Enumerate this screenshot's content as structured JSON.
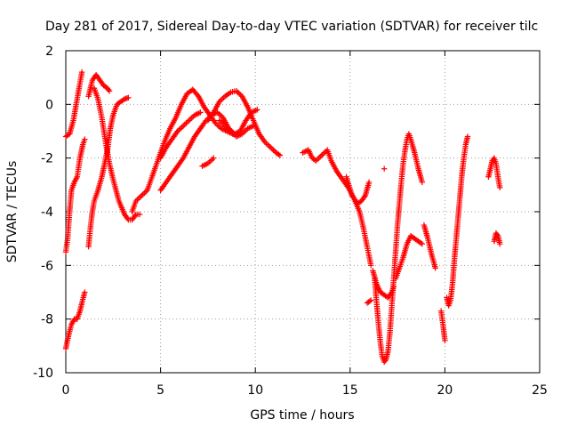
{
  "chart_data": {
    "type": "scatter",
    "title": "Day 281 of 2017, Sidereal Day-to-day VTEC variation (SDTVAR) for receiver tilc",
    "xlabel": "GPS time / hours",
    "ylabel": "SDTVAR / TECUs",
    "xlim": [
      0,
      25
    ],
    "ylim": [
      -10,
      2
    ],
    "xticks": [
      0,
      5,
      10,
      15,
      20,
      25
    ],
    "yticks": [
      -10,
      -8,
      -6,
      -4,
      -2,
      0,
      2
    ],
    "grid": true,
    "marker": "plus",
    "color": "#ff0000",
    "series": [
      {
        "name": "",
        "segments": [
          [
            [
              0.0,
              -1.2
            ],
            [
              0.2,
              -1.1
            ],
            [
              0.4,
              -0.6
            ],
            [
              0.55,
              0.0
            ],
            [
              0.7,
              0.6
            ],
            [
              0.8,
              1.0
            ],
            [
              0.85,
              1.2
            ]
          ],
          [
            [
              0.0,
              -5.5
            ],
            [
              0.1,
              -5.0
            ],
            [
              0.2,
              -4.0
            ],
            [
              0.3,
              -3.2
            ],
            [
              0.45,
              -2.9
            ],
            [
              0.6,
              -2.7
            ],
            [
              0.75,
              -2.0
            ],
            [
              0.9,
              -1.5
            ],
            [
              1.0,
              -1.3
            ]
          ],
          [
            [
              0.0,
              -9.1
            ],
            [
              0.15,
              -8.6
            ],
            [
              0.3,
              -8.2
            ],
            [
              0.45,
              -8.0
            ],
            [
              0.6,
              -8.0
            ],
            [
              0.75,
              -7.7
            ],
            [
              0.85,
              -7.4
            ],
            [
              1.0,
              -7.0
            ]
          ],
          [
            [
              1.2,
              -5.3
            ],
            [
              1.3,
              -4.6
            ],
            [
              1.4,
              -4.0
            ],
            [
              1.5,
              -3.6
            ],
            [
              1.7,
              -3.2
            ],
            [
              1.9,
              -2.7
            ],
            [
              2.05,
              -2.2
            ],
            [
              2.2,
              -1.7
            ],
            [
              2.35,
              -0.9
            ],
            [
              2.5,
              -0.4
            ],
            [
              2.7,
              -0.0
            ],
            [
              2.9,
              0.1
            ],
            [
              3.1,
              0.2
            ],
            [
              3.3,
              0.25
            ]
          ],
          [
            [
              1.2,
              0.3
            ],
            [
              1.4,
              0.9
            ],
            [
              1.6,
              1.1
            ],
            [
              1.8,
              0.9
            ],
            [
              2.0,
              0.7
            ],
            [
              2.2,
              0.6
            ],
            [
              2.3,
              0.5
            ]
          ],
          [
            [
              1.5,
              0.6
            ],
            [
              1.7,
              0.2
            ],
            [
              1.9,
              -0.5
            ],
            [
              2.1,
              -1.4
            ],
            [
              2.3,
              -2.2
            ],
            [
              2.5,
              -2.8
            ],
            [
              2.8,
              -3.6
            ],
            [
              3.1,
              -4.1
            ],
            [
              3.3,
              -4.3
            ],
            [
              3.5,
              -4.3
            ],
            [
              3.7,
              -4.1
            ],
            [
              3.9,
              -4.1
            ]
          ],
          [
            [
              3.5,
              -4.0
            ],
            [
              3.7,
              -3.6
            ],
            [
              4.0,
              -3.4
            ],
            [
              4.3,
              -3.2
            ],
            [
              4.6,
              -2.6
            ],
            [
              4.9,
              -2.0
            ],
            [
              5.2,
              -1.4
            ],
            [
              5.5,
              -0.9
            ],
            [
              5.8,
              -0.5
            ],
            [
              6.1,
              -0.0
            ],
            [
              6.4,
              0.4
            ],
            [
              6.7,
              0.55
            ]
          ],
          [
            [
              5.0,
              -2.0
            ],
            [
              5.3,
              -1.6
            ],
            [
              5.6,
              -1.3
            ],
            [
              5.9,
              -1.0
            ],
            [
              6.2,
              -0.8
            ],
            [
              6.5,
              -0.6
            ],
            [
              6.8,
              -0.4
            ],
            [
              7.1,
              -0.3
            ]
          ],
          [
            [
              5.0,
              -3.2
            ],
            [
              5.3,
              -2.9
            ],
            [
              5.6,
              -2.6
            ],
            [
              5.9,
              -2.3
            ],
            [
              6.2,
              -2.0
            ],
            [
              6.5,
              -1.6
            ],
            [
              6.8,
              -1.2
            ],
            [
              7.1,
              -0.9
            ],
            [
              7.4,
              -0.6
            ],
            [
              7.7,
              -0.4
            ],
            [
              8.0,
              -0.3
            ],
            [
              8.3,
              -0.5
            ],
            [
              8.6,
              -0.9
            ],
            [
              8.9,
              -1.1
            ],
            [
              9.2,
              -1.0
            ],
            [
              9.5,
              -0.6
            ],
            [
              9.8,
              -0.3
            ],
            [
              10.1,
              -0.2
            ]
          ],
          [
            [
              6.7,
              0.55
            ],
            [
              7.0,
              0.3
            ],
            [
              7.3,
              -0.1
            ],
            [
              7.6,
              -0.4
            ],
            [
              7.9,
              -0.7
            ],
            [
              8.2,
              -0.9
            ],
            [
              8.5,
              -1.0
            ],
            [
              8.8,
              -1.1
            ]
          ],
          [
            [
              7.2,
              -2.3
            ],
            [
              7.5,
              -2.2
            ],
            [
              7.8,
              -2.0
            ]
          ],
          [
            [
              7.5,
              -0.6
            ],
            [
              7.8,
              -0.3
            ],
            [
              8.1,
              0.1
            ],
            [
              8.4,
              0.3
            ],
            [
              8.7,
              0.45
            ],
            [
              9.0,
              0.5
            ],
            [
              9.3,
              0.3
            ],
            [
              9.6,
              -0.1
            ],
            [
              9.9,
              -0.6
            ],
            [
              10.2,
              -1.1
            ],
            [
              10.5,
              -1.4
            ],
            [
              10.8,
              -1.6
            ],
            [
              11.1,
              -1.8
            ],
            [
              11.3,
              -1.9
            ]
          ],
          [
            [
              8.1,
              -0.6
            ],
            [
              8.4,
              -0.8
            ],
            [
              8.7,
              -1.0
            ],
            [
              9.0,
              -1.2
            ],
            [
              9.3,
              -1.1
            ],
            [
              9.6,
              -0.9
            ],
            [
              9.9,
              -0.8
            ]
          ],
          [
            [
              12.5,
              -1.8
            ],
            [
              12.8,
              -1.7
            ],
            [
              13.0,
              -2.0
            ],
            [
              13.2,
              -2.1
            ],
            [
              13.5,
              -1.9
            ],
            [
              13.8,
              -1.7
            ],
            [
              14.0,
              -2.1
            ],
            [
              14.3,
              -2.5
            ],
            [
              14.6,
              -2.8
            ],
            [
              14.9,
              -3.1
            ],
            [
              15.2,
              -3.5
            ],
            [
              15.5,
              -4.0
            ],
            [
              15.7,
              -4.6
            ],
            [
              15.9,
              -5.3
            ],
            [
              16.1,
              -6.0
            ]
          ],
          [
            [
              14.8,
              -2.7
            ],
            [
              15.1,
              -3.4
            ],
            [
              15.4,
              -3.7
            ],
            [
              15.6,
              -3.6
            ],
            [
              15.8,
              -3.4
            ],
            [
              16.0,
              -2.9
            ]
          ],
          [
            [
              15.9,
              -7.4
            ],
            [
              16.1,
              -7.3
            ]
          ],
          [
            [
              16.2,
              -6.2
            ],
            [
              16.4,
              -6.7
            ],
            [
              16.6,
              -7.0
            ],
            [
              16.8,
              -7.1
            ],
            [
              17.0,
              -7.2
            ],
            [
              17.2,
              -7.0
            ],
            [
              17.3,
              -6.8
            ]
          ],
          [
            [
              16.3,
              -6.5
            ],
            [
              16.4,
              -7.4
            ],
            [
              16.5,
              -8.2
            ],
            [
              16.6,
              -8.9
            ],
            [
              16.7,
              -9.4
            ],
            [
              16.8,
              -9.6
            ],
            [
              16.9,
              -9.5
            ],
            [
              17.0,
              -9.2
            ],
            [
              17.1,
              -8.5
            ],
            [
              17.2,
              -7.5
            ],
            [
              17.3,
              -6.5
            ],
            [
              17.4,
              -5.5
            ],
            [
              17.5,
              -4.5
            ],
            [
              17.6,
              -3.7
            ],
            [
              17.7,
              -2.9
            ],
            [
              17.8,
              -2.2
            ],
            [
              17.9,
              -1.7
            ],
            [
              18.0,
              -1.3
            ],
            [
              18.1,
              -1.1
            ],
            [
              18.2,
              -1.3
            ],
            [
              18.4,
              -1.8
            ],
            [
              18.6,
              -2.4
            ],
            [
              18.8,
              -2.9
            ]
          ],
          [
            [
              17.4,
              -6.5
            ],
            [
              17.6,
              -6.1
            ],
            [
              17.8,
              -5.7
            ],
            [
              18.0,
              -5.2
            ],
            [
              18.2,
              -4.9
            ],
            [
              18.4,
              -5.0
            ],
            [
              18.6,
              -5.1
            ],
            [
              18.8,
              -5.2
            ]
          ],
          [
            [
              18.9,
              -4.5
            ],
            [
              19.1,
              -5.0
            ],
            [
              19.3,
              -5.6
            ],
            [
              19.5,
              -6.1
            ]
          ],
          [
            [
              16.8,
              -2.4
            ]
          ],
          [
            [
              19.8,
              -7.7
            ],
            [
              19.9,
              -8.2
            ],
            [
              20.0,
              -8.8
            ]
          ],
          [
            [
              20.1,
              -7.2
            ],
            [
              20.2,
              -7.5
            ],
            [
              20.3,
              -7.3
            ],
            [
              20.4,
              -6.7
            ],
            [
              20.5,
              -5.8
            ],
            [
              20.6,
              -5.0
            ],
            [
              20.7,
              -4.2
            ],
            [
              20.8,
              -3.4
            ],
            [
              20.9,
              -2.6
            ],
            [
              21.0,
              -2.0
            ],
            [
              21.1,
              -1.5
            ],
            [
              21.2,
              -1.2
            ]
          ],
          [
            [
              22.3,
              -2.7
            ],
            [
              22.4,
              -2.4
            ],
            [
              22.5,
              -2.1
            ],
            [
              22.6,
              -2.0
            ],
            [
              22.7,
              -2.2
            ],
            [
              22.8,
              -2.7
            ],
            [
              22.9,
              -3.1
            ]
          ],
          [
            [
              22.6,
              -5.1
            ],
            [
              22.7,
              -4.8
            ],
            [
              22.8,
              -4.9
            ],
            [
              22.9,
              -5.2
            ]
          ]
        ]
      }
    ]
  }
}
